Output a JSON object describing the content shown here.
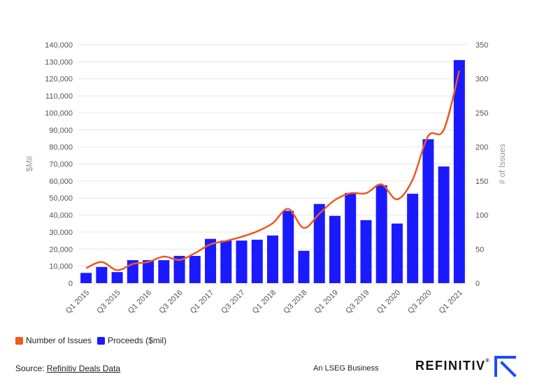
{
  "chart_data": {
    "type": "bar",
    "title": "",
    "ylabel": "$Mil",
    "y2label": "# of Issues",
    "ylim": [
      0,
      140000
    ],
    "y2lim": [
      0,
      350
    ],
    "yticks": [
      "0",
      "10,000",
      "20,000",
      "30,000",
      "40,000",
      "50,000",
      "60,000",
      "70,000",
      "80,000",
      "90,000",
      "100,000",
      "110,000",
      "120,000",
      "130,000",
      "140,000"
    ],
    "y2ticks": [
      "0",
      "50",
      "100",
      "150",
      "200",
      "250",
      "300",
      "350"
    ],
    "categories": [
      "Q1 2015",
      "Q2 2015",
      "Q3 2015",
      "Q4 2015",
      "Q1 2016",
      "Q2 2016",
      "Q3 2016",
      "Q4 2016",
      "Q1 2017",
      "Q2 2017",
      "Q3 2017",
      "Q4 2017",
      "Q1 2018",
      "Q2 2018",
      "Q3 2018",
      "Q4 2018",
      "Q1 2019",
      "Q2 2019",
      "Q3 2019",
      "Q4 2019",
      "Q1 2020",
      "Q2 2020",
      "Q3 2020",
      "Q4 2020",
      "Q1 2021"
    ],
    "xtick_labels": [
      "Q1 2015",
      "",
      "Q3 2015",
      "",
      "Q1 2016",
      "",
      "Q3 2016",
      "",
      "Q1 2017",
      "",
      "Q3 2017",
      "",
      "Q1 2018",
      "",
      "Q3 2018",
      "",
      "Q1 2019",
      "",
      "Q3 2019",
      "",
      "Q1 2020",
      "",
      "Q3 2020",
      "",
      "Q1 2021"
    ],
    "series": [
      {
        "name": "Proceeds ($mil)",
        "type": "bar",
        "axis": "left",
        "color": "#1a1aff",
        "values": [
          6000,
          9500,
          6500,
          13500,
          13500,
          13500,
          16000,
          16000,
          26000,
          25000,
          25000,
          25500,
          28000,
          42500,
          19000,
          46500,
          39500,
          53000,
          37000,
          57500,
          35000,
          52500,
          84500,
          68500,
          131000
        ]
      },
      {
        "name": "Number of Issues",
        "type": "line",
        "axis": "right",
        "color": "#f05a1a",
        "values": [
          22,
          31,
          19,
          28,
          31,
          39,
          34,
          44,
          57,
          62,
          68,
          76,
          88,
          109,
          81,
          102,
          122,
          132,
          132,
          145,
          123,
          152,
          216,
          225,
          312
        ]
      }
    ]
  },
  "legend": {
    "line_label": "Number of Issues",
    "bar_label": "Proceeds ($mil)"
  },
  "footer": {
    "source_prefix": "Source: ",
    "source_link": "Refinitiv Deals Data",
    "lseg": "An LSEG Business",
    "brand": "REFINITIV",
    "brand_mark": "®"
  },
  "colors": {
    "bar": "#1a1aff",
    "line": "#f05a1a",
    "grid": "#e6e6e6",
    "axis_text": "#555555"
  }
}
